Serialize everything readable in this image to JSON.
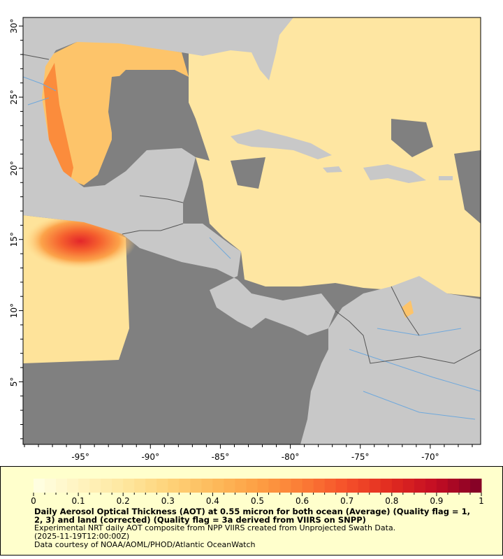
{
  "map": {
    "lon_ticks": [
      -95,
      -90,
      -85,
      -80,
      -75,
      -70
    ],
    "lat_ticks": [
      5,
      10,
      15,
      20,
      25,
      30
    ],
    "lon_range": [
      -99.1,
      -66.4
    ],
    "lat_range": [
      0.6,
      30.6
    ],
    "degree_symbol": "°",
    "colors": {
      "no_data": "#808080",
      "land": "#c8c8c8",
      "rivers": "#6fa8dc",
      "borders": "#555555"
    }
  },
  "colorbar": {
    "min": 0,
    "max": 1,
    "tick_labels": [
      "0",
      "0.1",
      "0.2",
      "0.3",
      "0.4",
      "0.5",
      "0.6",
      "0.7",
      "0.8",
      "0.9",
      "1"
    ],
    "colors": [
      "#ffffe5",
      "#fff3c0",
      "#fee8a0",
      "#fed37a",
      "#fdbb5c",
      "#fd9f44",
      "#fb7b35",
      "#f5502a",
      "#e02a20",
      "#c20c23",
      "#7f0026"
    ]
  },
  "legend": {
    "title": "Daily Aerosol Optical Thickness (AOT) at 0.55 micron for both ocean (Average) (Quality flag = 1, 2, 3) and land (corrected) (Quality flag = 3a derived from VIIRS on SNPP)",
    "description": "Experimental NRT daily AOT composite from NPP VIIRS created from Unprojected Swath Data.",
    "time": "(2025-11-19T12:00:00Z)",
    "credit": "Data courtesy of NOAA/AOML/PHOD/Atlantic OceanWatch"
  }
}
